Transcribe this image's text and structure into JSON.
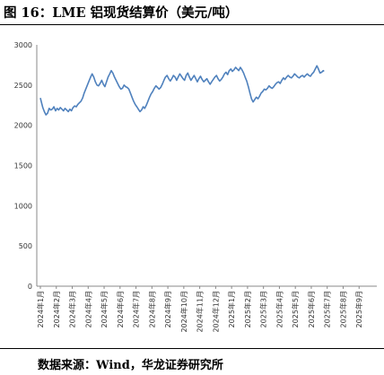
{
  "title": "图 16：LME 铝现货结算价（美元/吨）",
  "source": "数据来源：Wind，华龙证券研究所",
  "chart_data": {
    "type": "line",
    "title": "图 16：LME 铝现货结算价（美元/吨）",
    "xlabel": "",
    "ylabel": "",
    "ylim": [
      0,
      3000
    ],
    "yticks": [
      0,
      500,
      1000,
      1500,
      2000,
      2500,
      3000
    ],
    "x_tick_labels": [
      "2024年1月",
      "2024年2月",
      "2024年3月",
      "2024年4月",
      "2024年5月",
      "2024年6月",
      "2024年7月",
      "2024年8月",
      "2024年9月",
      "2024年10月",
      "2024年11月",
      "2024年12月",
      "2025年1月",
      "2025年2月",
      "2025年3月",
      "2025年4月",
      "2025年5月",
      "2025年6月",
      "2025年7月",
      "2025年8月",
      "2025年9月"
    ],
    "line_color": "#4f81bd",
    "grid": false,
    "series": [
      {
        "values": [
          [
            0.0,
            2340
          ],
          [
            0.06,
            2290
          ],
          [
            0.15,
            2220
          ],
          [
            0.25,
            2170
          ],
          [
            0.35,
            2130
          ],
          [
            0.45,
            2150
          ],
          [
            0.55,
            2210
          ],
          [
            0.65,
            2190
          ],
          [
            0.75,
            2200
          ],
          [
            0.85,
            2230
          ],
          [
            0.95,
            2180
          ],
          [
            1.05,
            2210
          ],
          [
            1.15,
            2190
          ],
          [
            1.25,
            2220
          ],
          [
            1.35,
            2200
          ],
          [
            1.45,
            2180
          ],
          [
            1.55,
            2210
          ],
          [
            1.65,
            2190
          ],
          [
            1.75,
            2170
          ],
          [
            1.85,
            2200
          ],
          [
            1.95,
            2180
          ],
          [
            2.05,
            2220
          ],
          [
            2.15,
            2240
          ],
          [
            2.25,
            2230
          ],
          [
            2.35,
            2260
          ],
          [
            2.45,
            2280
          ],
          [
            2.55,
            2300
          ],
          [
            2.65,
            2340
          ],
          [
            2.75,
            2400
          ],
          [
            2.85,
            2450
          ],
          [
            2.95,
            2500
          ],
          [
            3.05,
            2550
          ],
          [
            3.15,
            2600
          ],
          [
            3.25,
            2640
          ],
          [
            3.35,
            2600
          ],
          [
            3.45,
            2540
          ],
          [
            3.55,
            2500
          ],
          [
            3.65,
            2490
          ],
          [
            3.75,
            2520
          ],
          [
            3.85,
            2560
          ],
          [
            3.95,
            2510
          ],
          [
            4.05,
            2480
          ],
          [
            4.15,
            2540
          ],
          [
            4.25,
            2600
          ],
          [
            4.35,
            2640
          ],
          [
            4.45,
            2680
          ],
          [
            4.55,
            2650
          ],
          [
            4.65,
            2600
          ],
          [
            4.75,
            2560
          ],
          [
            4.85,
            2520
          ],
          [
            4.95,
            2480
          ],
          [
            5.05,
            2450
          ],
          [
            5.15,
            2460
          ],
          [
            5.25,
            2500
          ],
          [
            5.35,
            2480
          ],
          [
            5.45,
            2470
          ],
          [
            5.55,
            2450
          ],
          [
            5.65,
            2400
          ],
          [
            5.75,
            2350
          ],
          [
            5.85,
            2300
          ],
          [
            5.95,
            2260
          ],
          [
            6.05,
            2230
          ],
          [
            6.15,
            2200
          ],
          [
            6.25,
            2170
          ],
          [
            6.35,
            2190
          ],
          [
            6.45,
            2230
          ],
          [
            6.55,
            2210
          ],
          [
            6.65,
            2250
          ],
          [
            6.75,
            2300
          ],
          [
            6.85,
            2350
          ],
          [
            6.95,
            2390
          ],
          [
            7.05,
            2420
          ],
          [
            7.15,
            2460
          ],
          [
            7.25,
            2490
          ],
          [
            7.35,
            2470
          ],
          [
            7.45,
            2450
          ],
          [
            7.55,
            2470
          ],
          [
            7.65,
            2510
          ],
          [
            7.75,
            2560
          ],
          [
            7.85,
            2600
          ],
          [
            7.95,
            2620
          ],
          [
            8.05,
            2580
          ],
          [
            8.15,
            2550
          ],
          [
            8.25,
            2580
          ],
          [
            8.35,
            2620
          ],
          [
            8.45,
            2600
          ],
          [
            8.55,
            2560
          ],
          [
            8.65,
            2600
          ],
          [
            8.75,
            2640
          ],
          [
            8.85,
            2610
          ],
          [
            8.95,
            2580
          ],
          [
            9.05,
            2560
          ],
          [
            9.15,
            2620
          ],
          [
            9.25,
            2650
          ],
          [
            9.35,
            2600
          ],
          [
            9.45,
            2560
          ],
          [
            9.55,
            2590
          ],
          [
            9.65,
            2620
          ],
          [
            9.75,
            2580
          ],
          [
            9.85,
            2540
          ],
          [
            9.95,
            2580
          ],
          [
            10.05,
            2610
          ],
          [
            10.15,
            2570
          ],
          [
            10.25,
            2540
          ],
          [
            10.35,
            2560
          ],
          [
            10.45,
            2580
          ],
          [
            10.55,
            2540
          ],
          [
            10.65,
            2510
          ],
          [
            10.75,
            2540
          ],
          [
            10.85,
            2570
          ],
          [
            10.95,
            2600
          ],
          [
            11.05,
            2620
          ],
          [
            11.15,
            2580
          ],
          [
            11.25,
            2550
          ],
          [
            11.35,
            2570
          ],
          [
            11.45,
            2600
          ],
          [
            11.55,
            2640
          ],
          [
            11.65,
            2660
          ],
          [
            11.75,
            2630
          ],
          [
            11.85,
            2680
          ],
          [
            11.95,
            2700
          ],
          [
            12.05,
            2670
          ],
          [
            12.15,
            2690
          ],
          [
            12.25,
            2720
          ],
          [
            12.35,
            2700
          ],
          [
            12.45,
            2680
          ],
          [
            12.55,
            2720
          ],
          [
            12.65,
            2690
          ],
          [
            12.75,
            2650
          ],
          [
            12.85,
            2600
          ],
          [
            12.95,
            2550
          ],
          [
            13.05,
            2480
          ],
          [
            13.15,
            2400
          ],
          [
            13.25,
            2330
          ],
          [
            13.35,
            2290
          ],
          [
            13.45,
            2320
          ],
          [
            13.55,
            2350
          ],
          [
            13.65,
            2330
          ],
          [
            13.75,
            2360
          ],
          [
            13.85,
            2400
          ],
          [
            13.95,
            2420
          ],
          [
            14.05,
            2450
          ],
          [
            14.15,
            2440
          ],
          [
            14.25,
            2460
          ],
          [
            14.35,
            2490
          ],
          [
            14.45,
            2470
          ],
          [
            14.55,
            2460
          ],
          [
            14.65,
            2480
          ],
          [
            14.75,
            2510
          ],
          [
            14.85,
            2530
          ],
          [
            14.95,
            2540
          ],
          [
            15.05,
            2520
          ],
          [
            15.15,
            2560
          ],
          [
            15.25,
            2590
          ],
          [
            15.35,
            2570
          ],
          [
            15.45,
            2600
          ],
          [
            15.55,
            2620
          ],
          [
            15.65,
            2600
          ],
          [
            15.75,
            2590
          ],
          [
            15.85,
            2610
          ],
          [
            15.95,
            2640
          ],
          [
            16.05,
            2620
          ],
          [
            16.15,
            2600
          ],
          [
            16.25,
            2590
          ],
          [
            16.35,
            2610
          ],
          [
            16.45,
            2620
          ],
          [
            16.55,
            2600
          ],
          [
            16.65,
            2620
          ],
          [
            16.75,
            2640
          ],
          [
            16.85,
            2620
          ],
          [
            16.95,
            2610
          ],
          [
            17.05,
            2640
          ],
          [
            17.15,
            2660
          ],
          [
            17.25,
            2700
          ],
          [
            17.35,
            2740
          ],
          [
            17.45,
            2700
          ],
          [
            17.55,
            2650
          ],
          [
            17.65,
            2660
          ],
          [
            17.75,
            2680
          ],
          [
            17.8,
            2670
          ]
        ]
      }
    ]
  }
}
